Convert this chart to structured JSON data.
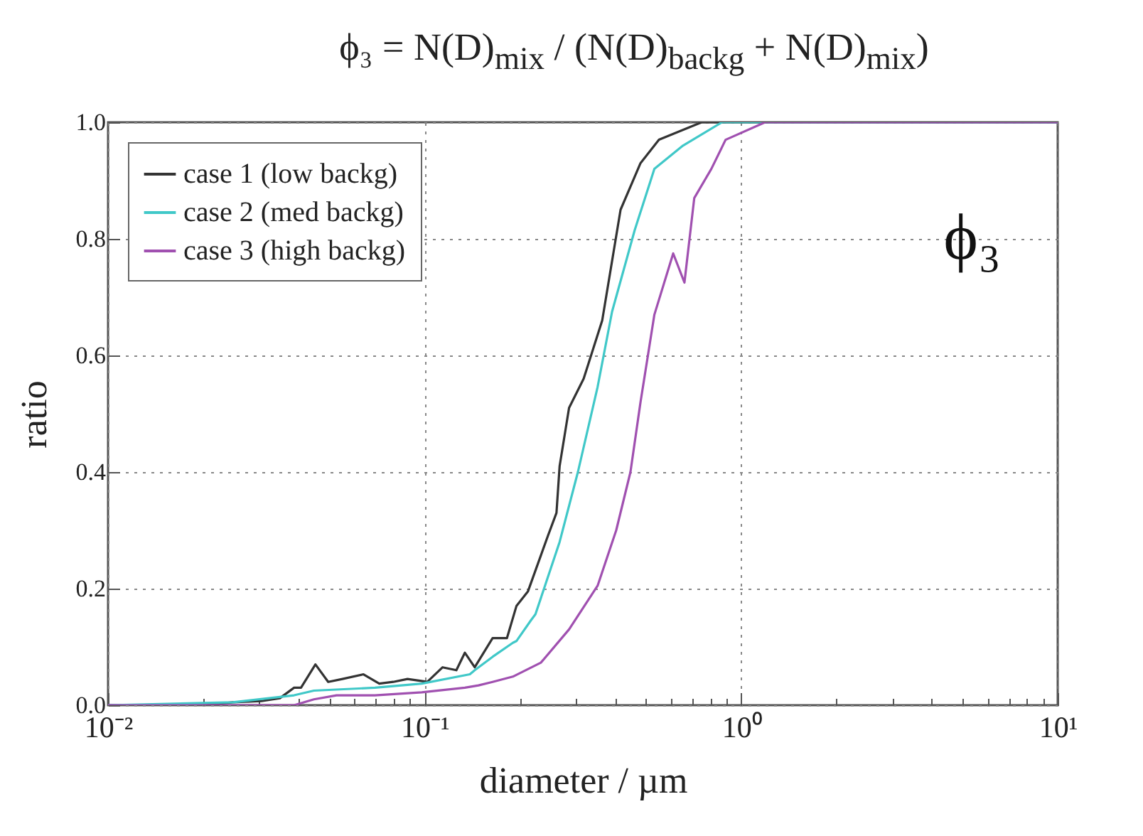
{
  "chart_data": {
    "type": "line",
    "title": "ϕ₃ = N(D)$_{mix}$ / (N(D)$_{backg}$ + N(D)$_{mix}$)",
    "xlabel": "diameter / µm",
    "ylabel": "ratio",
    "annotations": [
      "ϕ₃"
    ],
    "log": "x",
    "grid": true,
    "legend": "top left",
    "line_style": "solid",
    "marker": "none",
    "xlim": [
      0.01,
      10
    ],
    "ylim": [
      0,
      1
    ],
    "xticks": [
      {
        "value": 0.01,
        "label": "10⁻²"
      },
      {
        "value": 0.02,
        "label": null
      },
      {
        "value": 0.03,
        "label": null
      },
      {
        "value": 0.04,
        "label": null
      },
      {
        "value": 0.05,
        "label": null
      },
      {
        "value": 0.06,
        "label": null
      },
      {
        "value": 0.07,
        "label": null
      },
      {
        "value": 0.08,
        "label": null
      },
      {
        "value": 0.09,
        "label": null
      },
      {
        "value": 0.1,
        "label": "10⁻¹"
      },
      {
        "value": 0.2,
        "label": null
      },
      {
        "value": 0.3,
        "label": null
      },
      {
        "value": 0.4,
        "label": null
      },
      {
        "value": 0.5,
        "label": null
      },
      {
        "value": 0.6,
        "label": null
      },
      {
        "value": 0.7,
        "label": null
      },
      {
        "value": 0.8,
        "label": null
      },
      {
        "value": 0.9,
        "label": null
      },
      {
        "value": 1,
        "label": "10⁰"
      },
      {
        "value": 2,
        "label": null
      },
      {
        "value": 3,
        "label": null
      },
      {
        "value": 4,
        "label": null
      },
      {
        "value": 5,
        "label": null
      },
      {
        "value": 6,
        "label": null
      },
      {
        "value": 7,
        "label": null
      },
      {
        "value": 8,
        "label": null
      },
      {
        "value": 9,
        "label": null
      },
      {
        "value": 10,
        "label": "10¹"
      }
    ],
    "yticks": [
      {
        "value": 0,
        "label": "0.0"
      },
      {
        "value": 0.2,
        "label": "0.2"
      },
      {
        "value": 0.4,
        "label": "0.4"
      },
      {
        "value": 0.6,
        "label": "0.6"
      },
      {
        "value": 0.8,
        "label": "0.8"
      },
      {
        "value": 1,
        "label": "1.0"
      }
    ],
    "series": [
      {
        "name": "case 1 (low backg)",
        "color": "#333333",
        "x": [
          0.01,
          0.0202,
          0.0248,
          0.0305,
          0.0349,
          0.0387,
          0.0407,
          0.0452,
          0.0496,
          0.055,
          0.0641,
          0.0719,
          0.0796,
          0.0883,
          0.102,
          0.114,
          0.126,
          0.134,
          0.144,
          0.164,
          0.182,
          0.195,
          0.212,
          0.245,
          0.261,
          0.267,
          0.286,
          0.318,
          0.364,
          0.416,
          0.481,
          0.55,
          0.75,
          10
        ],
        "values": [
          0,
          0,
          0.005,
          0.007,
          0.012,
          0.03,
          0.03,
          0.07,
          0.04,
          0.045,
          0.053,
          0.037,
          0.04,
          0.045,
          0.04,
          0.065,
          0.06,
          0.09,
          0.065,
          0.115,
          0.115,
          0.17,
          0.195,
          0.29,
          0.33,
          0.41,
          0.51,
          0.56,
          0.66,
          0.85,
          0.93,
          0.97,
          1,
          1
        ]
      },
      {
        "name": "case 2 (med backg)",
        "color": "#40c8c8",
        "x": [
          0.01,
          0.0248,
          0.0387,
          0.0447,
          0.0697,
          0.098,
          0.139,
          0.144,
          0.164,
          0.19,
          0.195,
          0.217,
          0.224,
          0.267,
          0.305,
          0.352,
          0.391,
          0.461,
          0.532,
          0.655,
          0.87,
          10
        ],
        "values": [
          0,
          0.005,
          0.017,
          0.025,
          0.03,
          0.037,
          0.053,
          0.06,
          0.083,
          0.107,
          0.11,
          0.146,
          0.156,
          0.28,
          0.4,
          0.546,
          0.675,
          0.815,
          0.92,
          0.96,
          1,
          1
        ]
      },
      {
        "name": "case 3 (high backg)",
        "color": "#a050b0",
        "x": [
          0.01,
          0.0387,
          0.0447,
          0.0527,
          0.0697,
          0.098,
          0.134,
          0.148,
          0.164,
          0.19,
          0.233,
          0.286,
          0.352,
          0.403,
          0.447,
          0.481,
          0.532,
          0.61,
          0.662,
          0.711,
          0.805,
          0.893,
          1.19,
          10
        ],
        "values": [
          0,
          0,
          0.01,
          0.017,
          0.017,
          0.022,
          0.03,
          0.034,
          0.04,
          0.049,
          0.073,
          0.13,
          0.205,
          0.3,
          0.4,
          0.52,
          0.67,
          0.775,
          0.725,
          0.87,
          0.92,
          0.97,
          1,
          1
        ]
      }
    ]
  }
}
